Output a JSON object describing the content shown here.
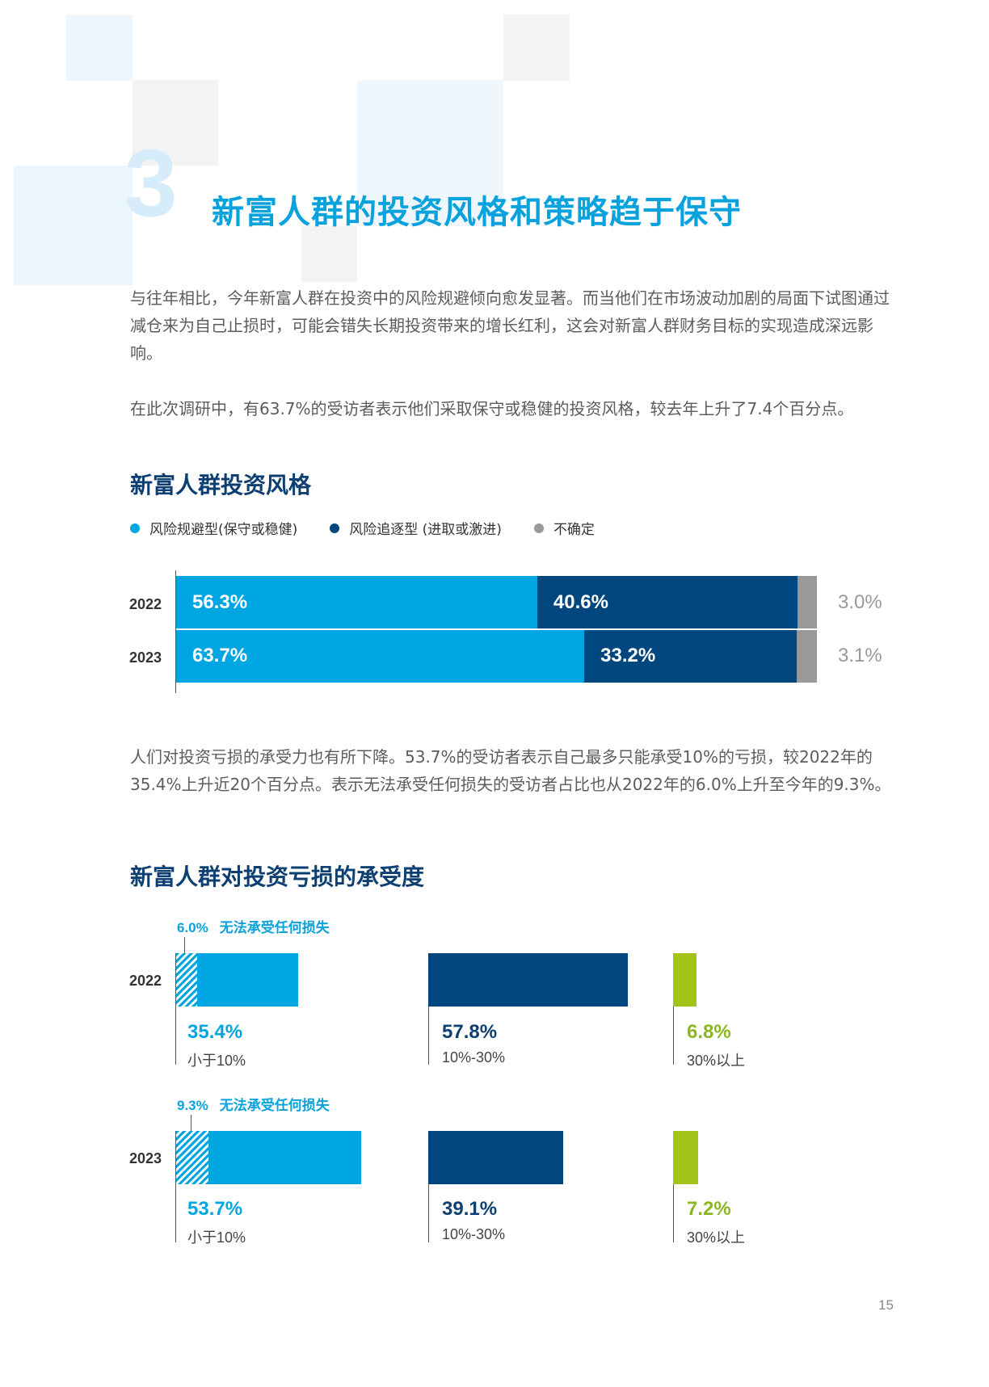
{
  "chapter": {
    "number": "3",
    "title": "新富人群的投资风格和策略趋于保守"
  },
  "intro": {
    "paragraph1": "与往年相比，今年新富人群在投资中的风险规避倾向愈发显著。而当他们在市场波动加剧的局面下试图通过减仓来为自己止损时，可能会错失长期投资带来的增长红利，这会对新富人群财务目标的实现造成深远影响。",
    "paragraph2": "在此次调研中，有63.7%的受访者表示他们采取保守或稳健的投资风格，较去年上升了7.4个百分点。"
  },
  "style_chart": {
    "title": "新富人群投资风格",
    "legend": [
      {
        "label": "风险规避型(保守或稳健)",
        "color": "#00a6e2"
      },
      {
        "label": "风险追逐型 (进取或激进)",
        "color": "#00467f"
      },
      {
        "label": "不确定",
        "color": "#999999"
      }
    ],
    "rows": [
      {
        "year": "2022",
        "averse_label": "56.3%",
        "seeking_label": "40.6%",
        "uncertain_label": "3.0%"
      },
      {
        "year": "2023",
        "averse_label": "63.7%",
        "seeking_label": "33.2%",
        "uncertain_label": "3.1%"
      }
    ]
  },
  "chart_data": [
    {
      "type": "bar",
      "title": "新富人群投资风格",
      "stacked": true,
      "orientation": "horizontal",
      "categories": [
        "2022",
        "2023"
      ],
      "series": [
        {
          "name": "风险规避型(保守或稳健)",
          "values": [
            56.3,
            63.7
          ]
        },
        {
          "name": "风险追逐型 (进取或激进)",
          "values": [
            40.6,
            33.2
          ]
        },
        {
          "name": "不确定",
          "values": [
            3.0,
            3.1
          ]
        }
      ],
      "unit": "%",
      "legend": "top-left"
    },
    {
      "type": "bar",
      "title": "新富人群对投资亏损的承受度",
      "orientation": "horizontal",
      "categories": [
        "小于10%",
        "10%-30%",
        "30%以上"
      ],
      "series": [
        {
          "name": "2022",
          "values": [
            35.4,
            57.8,
            6.8
          ],
          "cannot_bear_any_loss": 6.0
        },
        {
          "name": "2023",
          "values": [
            53.7,
            39.1,
            7.2
          ],
          "cannot_bear_any_loss": 9.3
        }
      ],
      "unit": "%"
    }
  ],
  "middle": {
    "paragraph": "人们对投资亏损的承受力也有所下降。53.7%的受访者表示自己最多只能承受10%的亏损，较2022年的35.4%上升近20个百分点。表示无法承受任何损失的受访者占比也从2022年的6.0%上升至今年的9.3%。"
  },
  "tolerance_chart": {
    "title": "新富人群对投资亏损的承受度",
    "no_loss_label": "无法承受任何损失",
    "colors": {
      "low": "#00a6e2",
      "mid": "#00467f",
      "high": "#a2c418"
    },
    "rows": [
      {
        "year": "2022",
        "no_loss_pct": "6.0%",
        "groups": [
          {
            "pct": "35.4%",
            "range": "小于10%"
          },
          {
            "pct": "57.8%",
            "range": "10%-30%"
          },
          {
            "pct": "6.8%",
            "range": "30%以上"
          }
        ]
      },
      {
        "year": "2023",
        "no_loss_pct": "9.3%",
        "groups": [
          {
            "pct": "53.7%",
            "range": "小于10%"
          },
          {
            "pct": "39.1%",
            "range": "10%-30%"
          },
          {
            "pct": "7.2%",
            "range": "30%以上"
          }
        ]
      }
    ]
  },
  "page_number": "15"
}
